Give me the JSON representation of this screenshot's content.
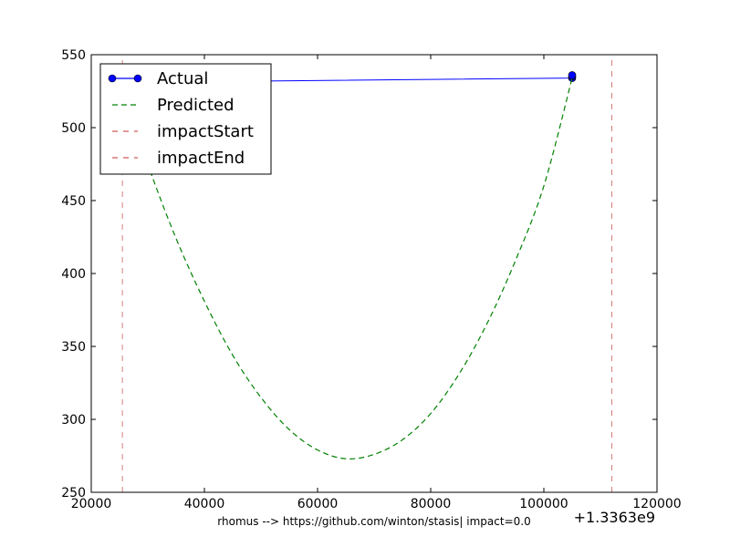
{
  "chart_data": {
    "type": "line",
    "title": "",
    "xlabel": "rhomus --> https://github.com/winton/stasis| impact=0.0",
    "ylabel": "",
    "x_offset_label": "+1.3363e9",
    "xlim": [
      20000,
      120000
    ],
    "ylim": [
      250,
      550
    ],
    "x_ticks": [
      20000,
      40000,
      60000,
      80000,
      100000,
      120000
    ],
    "y_ticks": [
      250,
      300,
      350,
      400,
      450,
      500,
      550
    ],
    "grid": false,
    "legend_position": "top-left",
    "series": [
      {
        "name": "Actual",
        "style": "solid-with-markers",
        "color": "#0000ff",
        "x": [
          25500,
          105000,
          105000,
          105000
        ],
        "y": [
          531,
          534,
          535,
          536
        ]
      },
      {
        "name": "Predicted",
        "style": "dashed",
        "color": "#008000",
        "x": [
          25500,
          30000,
          35000,
          40000,
          45000,
          50000,
          55000,
          60000,
          65000,
          70000,
          75000,
          80000,
          85000,
          90000,
          95000,
          100000,
          105000
        ],
        "y": [
          530,
          475,
          424,
          381,
          344,
          315,
          293,
          279,
          273,
          276,
          286,
          304,
          331,
          366,
          409,
          460,
          534
        ]
      },
      {
        "name": "impactStart",
        "style": "dashed-vertical",
        "color": "#cd5c5c",
        "x": [
          25500,
          25500
        ],
        "y": [
          250,
          550
        ]
      },
      {
        "name": "impactEnd",
        "style": "dashed-vertical",
        "color": "#cd5c5c",
        "x": [
          112000,
          112000
        ],
        "y": [
          250,
          550
        ]
      }
    ]
  }
}
